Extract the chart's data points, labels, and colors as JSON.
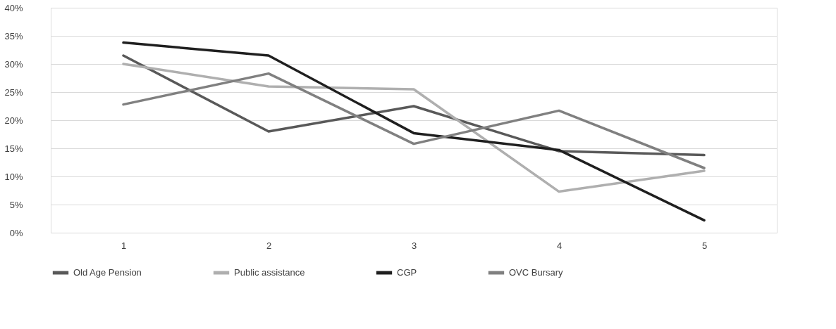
{
  "chart_data": {
    "type": "line",
    "categories": [
      "1",
      "2",
      "3",
      "4",
      "5"
    ],
    "series": [
      {
        "name": "Old Age Pension",
        "color": "#595959",
        "values": [
          31.5,
          18,
          22.5,
          14.5,
          13.8
        ]
      },
      {
        "name": "Public assistance",
        "color": "#afafaf",
        "values": [
          30,
          26,
          25.5,
          7.3,
          11
        ]
      },
      {
        "name": "CGP",
        "color": "#1f1f1f",
        "values": [
          33.8,
          31.5,
          17.7,
          14.7,
          2.2
        ]
      },
      {
        "name": "OVC Bursary",
        "color": "#808080",
        "values": [
          22.8,
          28.3,
          15.8,
          21.7,
          11.5
        ]
      }
    ],
    "ylim": [
      0,
      40
    ],
    "yticks": [
      {
        "value": 0,
        "label": "0%"
      },
      {
        "value": 5,
        "label": "5%"
      },
      {
        "value": 10,
        "label": "10%"
      },
      {
        "value": 15,
        "label": "15%"
      },
      {
        "value": 20,
        "label": "20%"
      },
      {
        "value": 25,
        "label": "25%"
      },
      {
        "value": 30,
        "label": "30%"
      },
      {
        "value": 35,
        "label": "35%"
      },
      {
        "value": 40,
        "label": "40%"
      }
    ],
    "grid": "y",
    "legend": "bottom",
    "marker": "none",
    "line_style": "solid"
  }
}
